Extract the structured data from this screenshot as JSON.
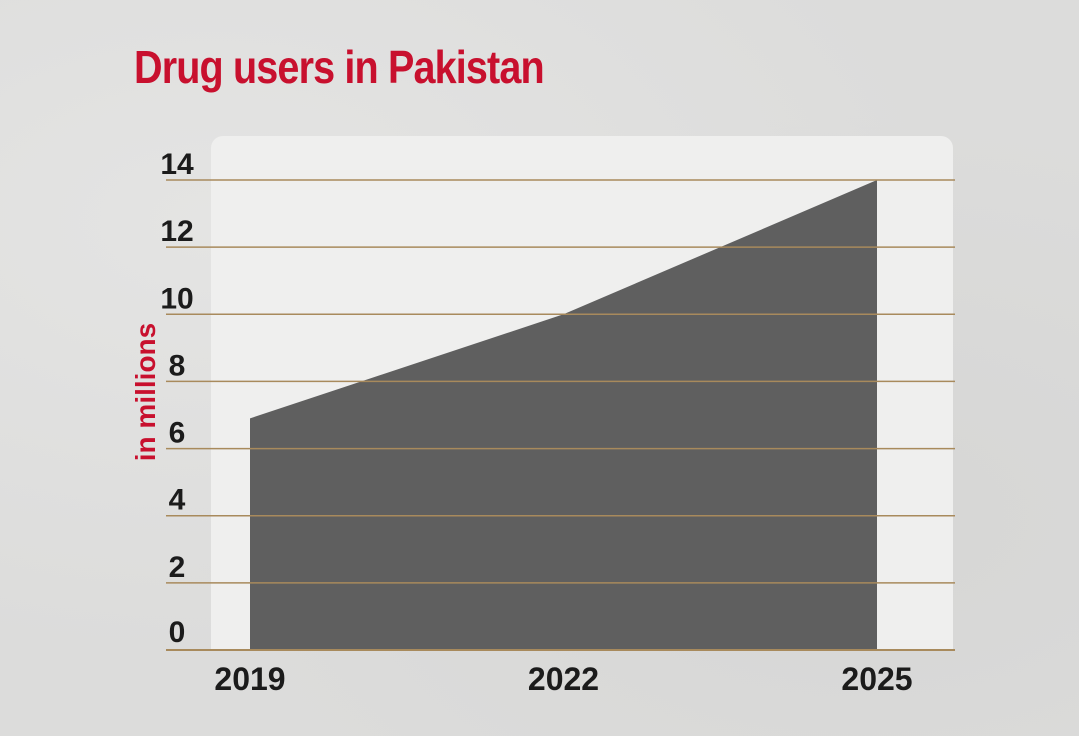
{
  "chart_data": {
    "type": "area",
    "title": "Drug users in Pakistan",
    "xlabel": "",
    "ylabel": "in millions",
    "x": [
      "2019",
      "2022",
      "2025"
    ],
    "series": [
      {
        "values": [
          6.9,
          10,
          14
        ]
      }
    ],
    "ylim": [
      0,
      14
    ],
    "yticks": [
      0,
      2,
      4,
      6,
      8,
      10,
      12,
      14
    ],
    "grid": true,
    "colors": {
      "area": "#5f5f5f",
      "title": "#c8102e",
      "ylabel": "#c8102e",
      "grid": "#a88a5c",
      "plot_background": "#efefee"
    }
  }
}
